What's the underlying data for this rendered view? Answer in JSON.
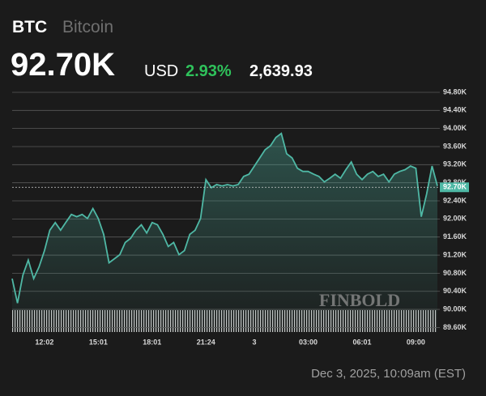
{
  "header": {
    "symbol": "BTC",
    "name": "Bitcoin",
    "price": "92.70K",
    "currency": "USD",
    "change_percent": "2.93%",
    "change": "2,639.93"
  },
  "chart_data": {
    "type": "area",
    "categories": [
      null,
      null,
      null,
      null,
      null,
      null,
      "12:02",
      null,
      null,
      null,
      null,
      null,
      null,
      null,
      null,
      null,
      "15:01",
      null,
      null,
      null,
      null,
      null,
      null,
      null,
      null,
      null,
      "18:01",
      null,
      null,
      null,
      null,
      null,
      null,
      null,
      null,
      null,
      "21:24",
      null,
      null,
      null,
      null,
      null,
      null,
      null,
      null,
      "3",
      null,
      null,
      null,
      null,
      null,
      null,
      null,
      null,
      null,
      "03:00",
      null,
      null,
      null,
      null,
      null,
      null,
      null,
      null,
      null,
      "06:01",
      null,
      null,
      null,
      null,
      null,
      null,
      null,
      null,
      null,
      "09:00",
      null,
      null,
      null,
      null
    ],
    "values": [
      90.68,
      90.14,
      90.76,
      91.09,
      90.68,
      90.94,
      91.3,
      91.75,
      91.92,
      91.75,
      91.93,
      92.1,
      92.05,
      92.1,
      92.01,
      92.23,
      92.01,
      91.66,
      91.03,
      91.12,
      91.21,
      91.48,
      91.57,
      91.75,
      91.87,
      91.69,
      91.92,
      91.87,
      91.66,
      91.39,
      91.48,
      91.21,
      91.3,
      91.66,
      91.75,
      92.01,
      92.87,
      92.69,
      92.76,
      92.73,
      92.76,
      92.73,
      92.76,
      92.94,
      92.99,
      93.17,
      93.35,
      93.53,
      93.62,
      93.8,
      93.89,
      93.44,
      93.35,
      93.12,
      93.05,
      93.05,
      92.99,
      92.94,
      92.82,
      92.9,
      92.99,
      92.9,
      93.09,
      93.26,
      92.99,
      92.87,
      92.99,
      93.05,
      92.94,
      92.99,
      92.82,
      92.99,
      93.05,
      93.09,
      93.17,
      93.12,
      92.05,
      92.55,
      93.17,
      92.73
    ],
    "color": "#4fb8a5",
    "ylim": [
      89.5,
      95.05
    ],
    "yticks": [
      {
        "value": 89.6,
        "label": "89.60K"
      },
      {
        "value": 90.0,
        "label": "90.00K"
      },
      {
        "value": 90.4,
        "label": "90.40K"
      },
      {
        "value": 90.8,
        "label": "90.80K"
      },
      {
        "value": 91.2,
        "label": "91.20K"
      },
      {
        "value": 91.6,
        "label": "91.60K"
      },
      {
        "value": 92.0,
        "label": "92.00K"
      },
      {
        "value": 92.4,
        "label": "92.40K"
      },
      {
        "value": 92.8,
        "label": "92.80K"
      },
      {
        "value": 93.2,
        "label": "93.20K"
      },
      {
        "value": 93.6,
        "label": "93.60K"
      },
      {
        "value": 94.0,
        "label": "94.00K"
      },
      {
        "value": 94.4,
        "label": "94.40K"
      },
      {
        "value": 94.8,
        "label": "94.80K"
      }
    ],
    "grid": true,
    "last_price": {
      "value": 92.7,
      "label": "92.70K"
    }
  },
  "watermark": "FINBOLD",
  "timestamp": "Dec 3, 2025, 10:09am (EST)"
}
